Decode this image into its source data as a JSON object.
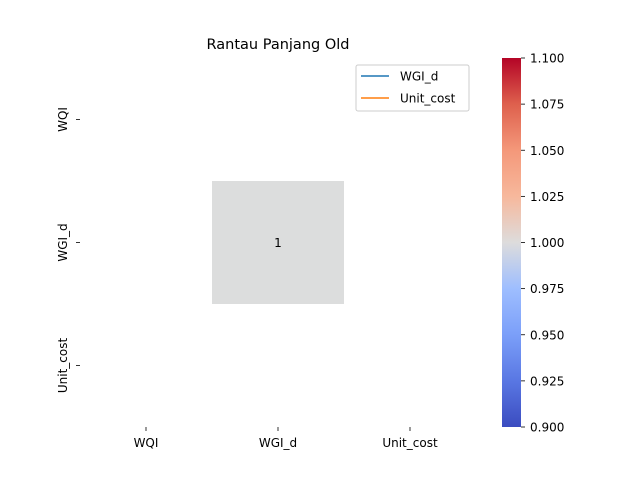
{
  "chart_data": {
    "type": "heatmap",
    "title": "Rantau Panjang Old",
    "x_categories": [
      "WQI",
      "WGI_d",
      "Unit_cost"
    ],
    "y_categories": [
      "WQI",
      "WGI_d",
      "Unit_cost"
    ],
    "cells": [
      {
        "row": 1,
        "col": 1,
        "value": 1,
        "label": "1"
      }
    ],
    "colorbar": {
      "colormap": "coolwarm",
      "vmin": 0.9,
      "vmax": 1.1,
      "ticks": [
        "0.900",
        "0.925",
        "0.950",
        "0.975",
        "1.000",
        "1.025",
        "1.050",
        "1.075",
        "1.100"
      ]
    },
    "legend": {
      "placement": "upper-right",
      "entries": [
        {
          "name": "WGI_d",
          "color": "#1f77b4"
        },
        {
          "name": "Unit_cost",
          "color": "#ff7f0e"
        }
      ]
    },
    "cell_color": "#dcdddd"
  }
}
